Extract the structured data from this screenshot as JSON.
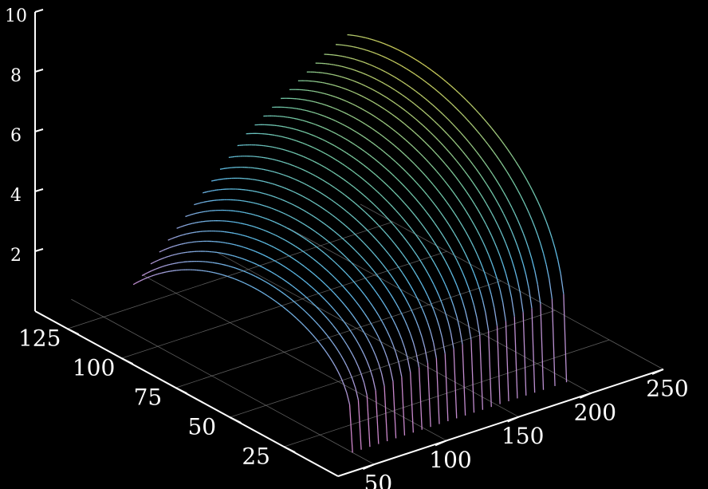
{
  "chart_data": {
    "type": "line",
    "projection": "3d",
    "title": "",
    "xlabel": "",
    "ylabel": "",
    "zlabel": "",
    "xlim": [
      25,
      250
    ],
    "ylim": [
      0,
      140
    ],
    "zlim": [
      0,
      10
    ],
    "x_ticks": [
      50,
      100,
      150,
      200,
      250
    ],
    "y_ticks": [
      25,
      50,
      75,
      100,
      125
    ],
    "z_ticks": [
      2,
      4,
      6,
      8,
      10
    ],
    "grid": true,
    "colormap": [
      "#e377c2",
      "#aa9ad7",
      "#5bb8e6",
      "#74c9a2",
      "#d6cb4f",
      "#f2e45c"
    ],
    "curve_family": {
      "count": 25,
      "description_note": "",
      "start_x_range": [
        50,
        198
      ],
      "start_y": 10,
      "apex_z_range": [
        5.2,
        9.7
      ],
      "end_z_range": [
        1.2,
        7.2
      ]
    },
    "series": [
      {
        "name": "",
        "start_x": 50,
        "apex_z": 5.2,
        "end_z": 1.2
      },
      {
        "name": "",
        "start_x": 56,
        "apex_z": 5.4,
        "end_z": 1.4
      },
      {
        "name": "",
        "start_x": 62,
        "apex_z": 5.6,
        "end_z": 1.7
      },
      {
        "name": "",
        "start_x": 68,
        "apex_z": 5.8,
        "end_z": 2.0
      },
      {
        "name": "",
        "start_x": 74,
        "apex_z": 6.0,
        "end_z": 2.3
      },
      {
        "name": "",
        "start_x": 80,
        "apex_z": 6.2,
        "end_z": 2.6
      },
      {
        "name": "",
        "start_x": 86,
        "apex_z": 6.4,
        "end_z": 2.9
      },
      {
        "name": "",
        "start_x": 92,
        "apex_z": 6.6,
        "end_z": 3.2
      },
      {
        "name": "",
        "start_x": 98,
        "apex_z": 6.8,
        "end_z": 3.5
      },
      {
        "name": "",
        "start_x": 104,
        "apex_z": 7.0,
        "end_z": 3.8
      },
      {
        "name": "",
        "start_x": 110,
        "apex_z": 7.2,
        "end_z": 4.1
      },
      {
        "name": "",
        "start_x": 116,
        "apex_z": 7.4,
        "end_z": 4.4
      },
      {
        "name": "",
        "start_x": 122,
        "apex_z": 7.6,
        "end_z": 4.7
      },
      {
        "name": "",
        "start_x": 128,
        "apex_z": 7.8,
        "end_z": 5.0
      },
      {
        "name": "",
        "start_x": 134,
        "apex_z": 8.0,
        "end_z": 5.2
      },
      {
        "name": "",
        "start_x": 140,
        "apex_z": 8.2,
        "end_z": 5.4
      },
      {
        "name": "",
        "start_x": 146,
        "apex_z": 8.4,
        "end_z": 5.6
      },
      {
        "name": "",
        "start_x": 152,
        "apex_z": 8.6,
        "end_z": 5.8
      },
      {
        "name": "",
        "start_x": 158,
        "apex_z": 8.8,
        "end_z": 6.0
      },
      {
        "name": "",
        "start_x": 164,
        "apex_z": 9.0,
        "end_z": 6.2
      },
      {
        "name": "",
        "start_x": 170,
        "apex_z": 9.15,
        "end_z": 6.4
      },
      {
        "name": "",
        "start_x": 176,
        "apex_z": 9.3,
        "end_z": 6.6
      },
      {
        "name": "",
        "start_x": 182,
        "apex_z": 9.45,
        "end_z": 6.8
      },
      {
        "name": "",
        "start_x": 190,
        "apex_z": 9.6,
        "end_z": 7.0
      },
      {
        "name": "",
        "start_x": 198,
        "apex_z": 9.7,
        "end_z": 7.2
      }
    ]
  }
}
